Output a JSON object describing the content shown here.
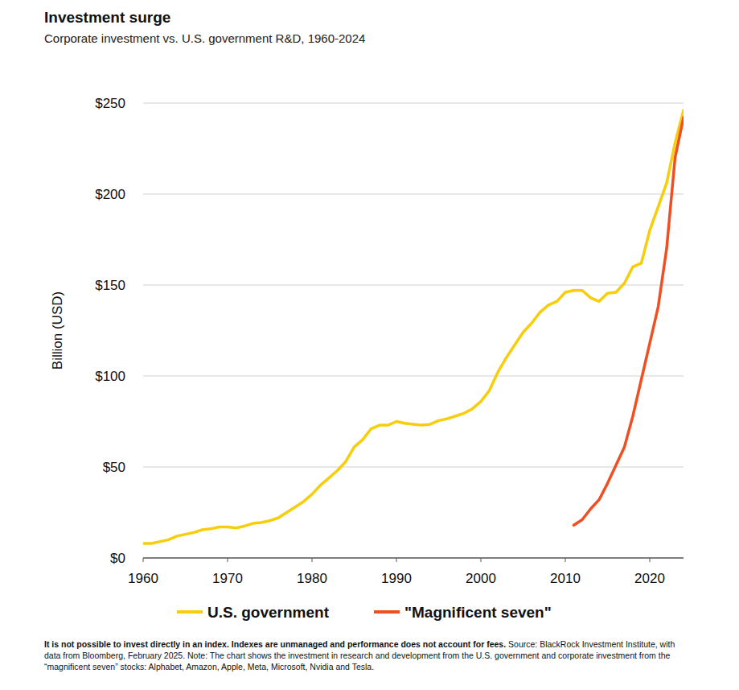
{
  "chart_data": {
    "type": "line",
    "title": "Investment surge",
    "subtitle": "Corporate investment vs. U.S. government R&D, 1960-2024",
    "y_label": "Billion (USD)",
    "disclaimer": "It is not possible to invest directly in an index. Indexes are unmanaged and performance does not account for fees.",
    "source": "Source: BlackRock Investment Institute, with data from Bloomberg, February 2025. Note: The chart shows the investment in research and development from the U.S. government and corporate investment from the “magnificent seven” stocks: Alphabet, Amazon, Apple, Meta, Microsoft, Nvidia and Tesla.",
    "x": [
      1960,
      1961,
      1962,
      1963,
      1964,
      1965,
      1966,
      1967,
      1968,
      1969,
      1970,
      1971,
      1972,
      1973,
      1974,
      1975,
      1976,
      1977,
      1978,
      1979,
      1980,
      1981,
      1982,
      1983,
      1984,
      1985,
      1986,
      1987,
      1988,
      1989,
      1990,
      1991,
      1992,
      1993,
      1994,
      1995,
      1996,
      1997,
      1998,
      1999,
      2000,
      2001,
      2002,
      2003,
      2004,
      2005,
      2006,
      2007,
      2008,
      2009,
      2010,
      2011,
      2012,
      2013,
      2014,
      2015,
      2016,
      2017,
      2018,
      2019,
      2020,
      2021,
      2022,
      2023,
      2024
    ],
    "series": [
      {
        "name": "U.S. government",
        "color": "#f7cd0c",
        "values": [
          8,
          8,
          9,
          10,
          12,
          13,
          14,
          15.5,
          16,
          17,
          17,
          16.5,
          17.5,
          19,
          19.5,
          20.5,
          22,
          25,
          28,
          31,
          35,
          40,
          44,
          48,
          53,
          61,
          65,
          71,
          73,
          73,
          75,
          74,
          73.5,
          73,
          73.5,
          75.5,
          76.5,
          78,
          79.5,
          82,
          86,
          92,
          102,
          110,
          117,
          124,
          129,
          135,
          139,
          141,
          146,
          147,
          147,
          143,
          141,
          145.5,
          146,
          151,
          160,
          162,
          180,
          193,
          206,
          228,
          246
        ]
      },
      {
        "name": "\"Magnificent seven\"",
        "color": "#f04e23",
        "values": [
          null,
          null,
          null,
          null,
          null,
          null,
          null,
          null,
          null,
          null,
          null,
          null,
          null,
          null,
          null,
          null,
          null,
          null,
          null,
          null,
          null,
          null,
          null,
          null,
          null,
          null,
          null,
          null,
          null,
          null,
          null,
          null,
          null,
          null,
          null,
          null,
          null,
          null,
          null,
          null,
          null,
          null,
          null,
          null,
          null,
          null,
          null,
          null,
          null,
          null,
          null,
          18,
          21,
          27,
          32,
          41,
          51,
          61,
          78,
          98,
          118,
          138,
          170,
          220,
          242
        ]
      }
    ],
    "xlim": [
      1960,
      2024
    ],
    "xticks": [
      1960,
      1970,
      1980,
      1990,
      2000,
      2010,
      2020
    ],
    "ylim": [
      0,
      250
    ],
    "yticks": [
      {
        "value": 0,
        "label": "$0"
      },
      {
        "value": 50,
        "label": "$50"
      },
      {
        "value": 100,
        "label": "$100"
      },
      {
        "value": 150,
        "label": "$150"
      },
      {
        "value": 200,
        "label": "$200"
      },
      {
        "value": 250,
        "label": "$250"
      }
    ],
    "grid": true,
    "legend": "bottom"
  }
}
